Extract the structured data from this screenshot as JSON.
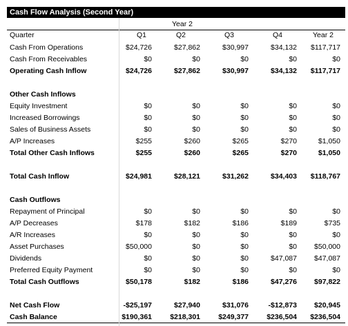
{
  "title": "Cash Flow Analysis (Second Year)",
  "year_label": "Year 2",
  "columns": [
    "Quarter",
    "Q1",
    "Q2",
    "Q3",
    "Q4",
    "Year 2"
  ],
  "rows": [
    {
      "label": "Cash From Operations",
      "values": [
        "$24,726",
        "$27,862",
        "$30,997",
        "$34,132",
        "$117,717"
      ],
      "bold": false
    },
    {
      "label": "Cash From Receivables",
      "values": [
        "$0",
        "$0",
        "$0",
        "$0",
        "$0"
      ],
      "bold": false
    },
    {
      "label": "Operating Cash Inflow",
      "values": [
        "$24,726",
        "$27,862",
        "$30,997",
        "$34,132",
        "$117,717"
      ],
      "bold": true
    },
    {
      "label": "",
      "values": [
        "",
        "",
        "",
        "",
        ""
      ],
      "bold": false
    },
    {
      "label": "Other Cash Inflows",
      "values": [
        "",
        "",
        "",
        "",
        ""
      ],
      "bold": true
    },
    {
      "label": "Equity Investment",
      "values": [
        "$0",
        "$0",
        "$0",
        "$0",
        "$0"
      ],
      "bold": false
    },
    {
      "label": "Increased Borrowings",
      "values": [
        "$0",
        "$0",
        "$0",
        "$0",
        "$0"
      ],
      "bold": false
    },
    {
      "label": "Sales of Business Assets",
      "values": [
        "$0",
        "$0",
        "$0",
        "$0",
        "$0"
      ],
      "bold": false
    },
    {
      "label": "A/P Increases",
      "values": [
        "$255",
        "$260",
        "$265",
        "$270",
        "$1,050"
      ],
      "bold": false
    },
    {
      "label": "Total Other Cash Inflows",
      "values": [
        "$255",
        "$260",
        "$265",
        "$270",
        "$1,050"
      ],
      "bold": true
    },
    {
      "label": "",
      "values": [
        "",
        "",
        "",
        "",
        ""
      ],
      "bold": false
    },
    {
      "label": "Total Cash Inflow",
      "values": [
        "$24,981",
        "$28,121",
        "$31,262",
        "$34,403",
        "$118,767"
      ],
      "bold": true
    },
    {
      "label": "",
      "values": [
        "",
        "",
        "",
        "",
        ""
      ],
      "bold": false
    },
    {
      "label": "Cash Outflows",
      "values": [
        "",
        "",
        "",
        "",
        ""
      ],
      "bold": true
    },
    {
      "label": "Repayment of Principal",
      "values": [
        "$0",
        "$0",
        "$0",
        "$0",
        "$0"
      ],
      "bold": false
    },
    {
      "label": "A/P Decreases",
      "values": [
        "$178",
        "$182",
        "$186",
        "$189",
        "$735"
      ],
      "bold": false
    },
    {
      "label": "A/R Increases",
      "values": [
        "$0",
        "$0",
        "$0",
        "$0",
        "$0"
      ],
      "bold": false
    },
    {
      "label": "Asset Purchases",
      "values": [
        "$50,000",
        "$0",
        "$0",
        "$0",
        "$50,000"
      ],
      "bold": false
    },
    {
      "label": "Dividends",
      "values": [
        "$0",
        "$0",
        "$0",
        "$47,087",
        "$47,087"
      ],
      "bold": false
    },
    {
      "label": "Preferred Equity Payment",
      "values": [
        "$0",
        "$0",
        "$0",
        "$0",
        "$0"
      ],
      "bold": false
    },
    {
      "label": "Total Cash Outflows",
      "values": [
        "$50,178",
        "$182",
        "$186",
        "$47,276",
        "$97,822"
      ],
      "bold": true
    },
    {
      "label": "",
      "values": [
        "",
        "",
        "",
        "",
        ""
      ],
      "bold": false
    },
    {
      "label": "Net Cash Flow",
      "values": [
        "-$25,197",
        "$27,940",
        "$31,076",
        "-$12,873",
        "$20,945"
      ],
      "bold": true
    },
    {
      "label": "Cash Balance",
      "values": [
        "$190,361",
        "$218,301",
        "$249,377",
        "$236,504",
        "$236,504"
      ],
      "bold": true
    }
  ]
}
